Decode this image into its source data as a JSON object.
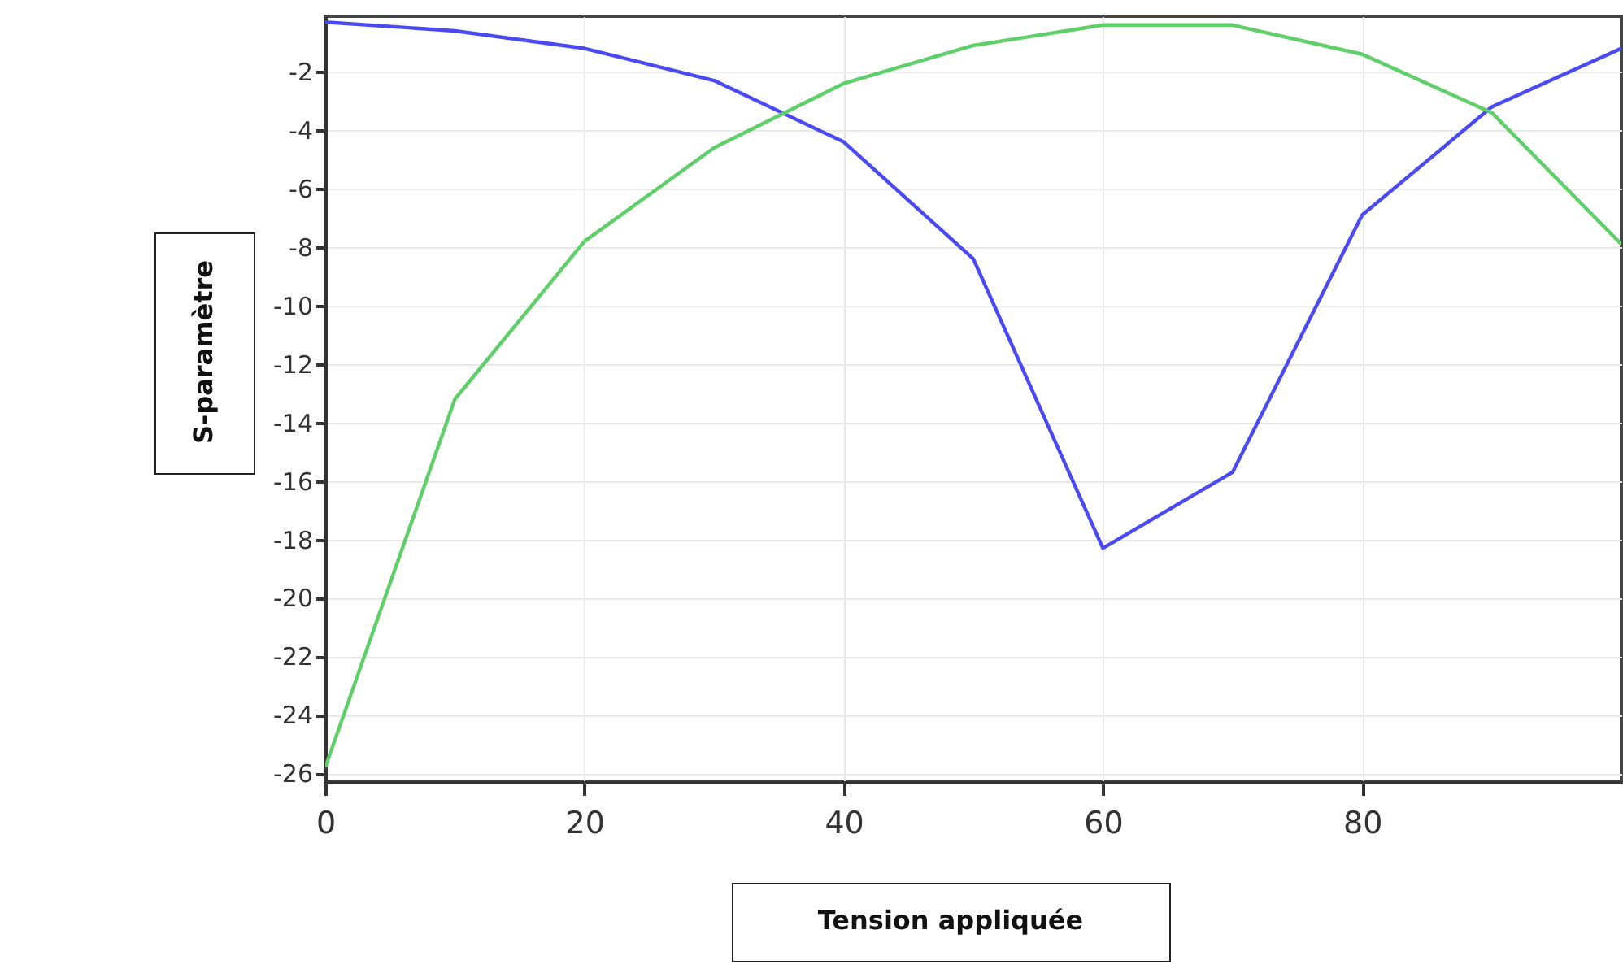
{
  "chart_data": {
    "type": "line",
    "xlabel": "Tension appliquée",
    "ylabel": "S-paramètre",
    "x": [
      0,
      10,
      20,
      30,
      40,
      50,
      60,
      70,
      80,
      90,
      100
    ],
    "xlim": [
      0,
      100
    ],
    "xticks": [
      0,
      20,
      40,
      60,
      80
    ],
    "ylim": [
      -26.3,
      -0.1
    ],
    "yticks": [
      -26,
      -24,
      -22,
      -20,
      -18,
      -16,
      -14,
      -12,
      -10,
      -8,
      -6,
      -4,
      -2
    ],
    "grid": true,
    "line_style": "solid",
    "series": [
      {
        "color": "#4a4af5",
        "values": [
          -0.3,
          -0.6,
          -1.2,
          -2.3,
          -4.4,
          -8.4,
          -18.3,
          -15.7,
          -6.9,
          -3.2,
          -1.2
        ]
      },
      {
        "color": "#5fcf6a",
        "values": [
          -25.8,
          -13.2,
          -7.8,
          -4.6,
          -2.4,
          -1.1,
          -0.4,
          -0.4,
          -1.4,
          -3.4,
          -7.9
        ]
      }
    ]
  }
}
